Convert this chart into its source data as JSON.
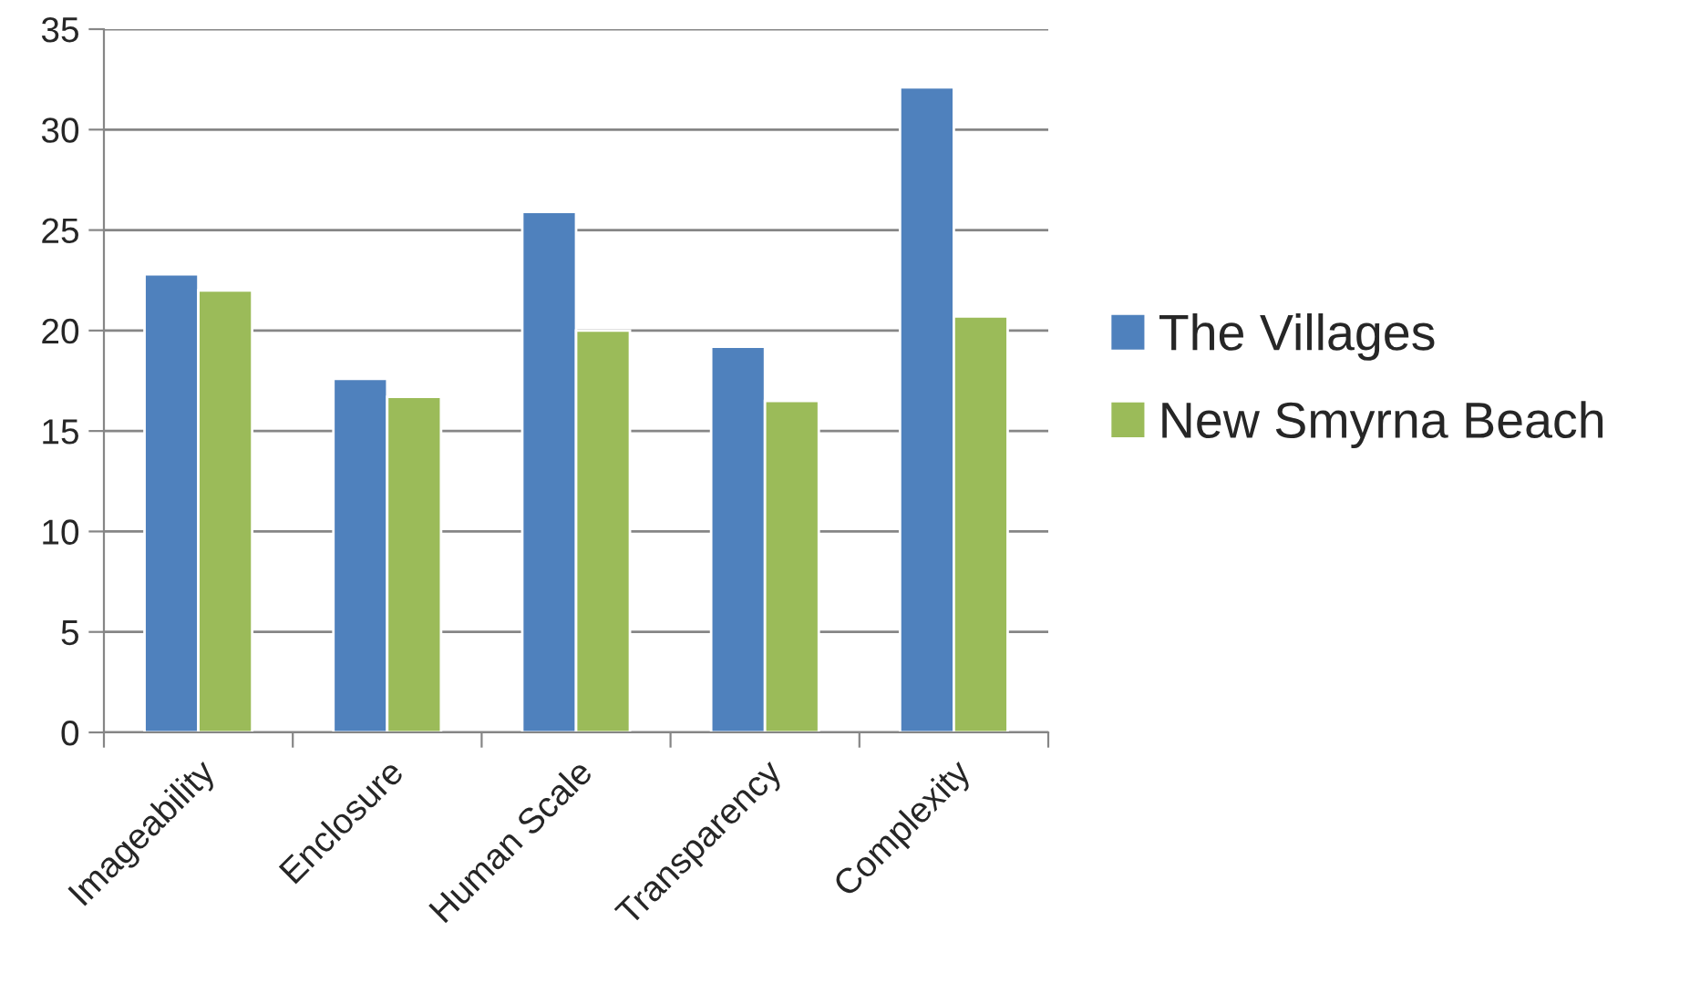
{
  "chart_data": {
    "type": "bar",
    "categories": [
      "Imageability",
      "Enclosure",
      "Human Scale",
      "Transparency",
      "Complexity"
    ],
    "series": [
      {
        "name": "The Villages",
        "color": "#4f81bd",
        "values": [
          22.8,
          17.6,
          25.9,
          19.2,
          32.1
        ]
      },
      {
        "name": "New Smyrna Beach",
        "color": "#9bbb59",
        "values": [
          22.0,
          16.7,
          20.0,
          16.5,
          20.7
        ]
      }
    ],
    "ylim": [
      0,
      35
    ],
    "yticks": [
      0,
      5,
      10,
      15,
      20,
      25,
      30,
      35
    ],
    "grid": "y",
    "legend": "right"
  }
}
